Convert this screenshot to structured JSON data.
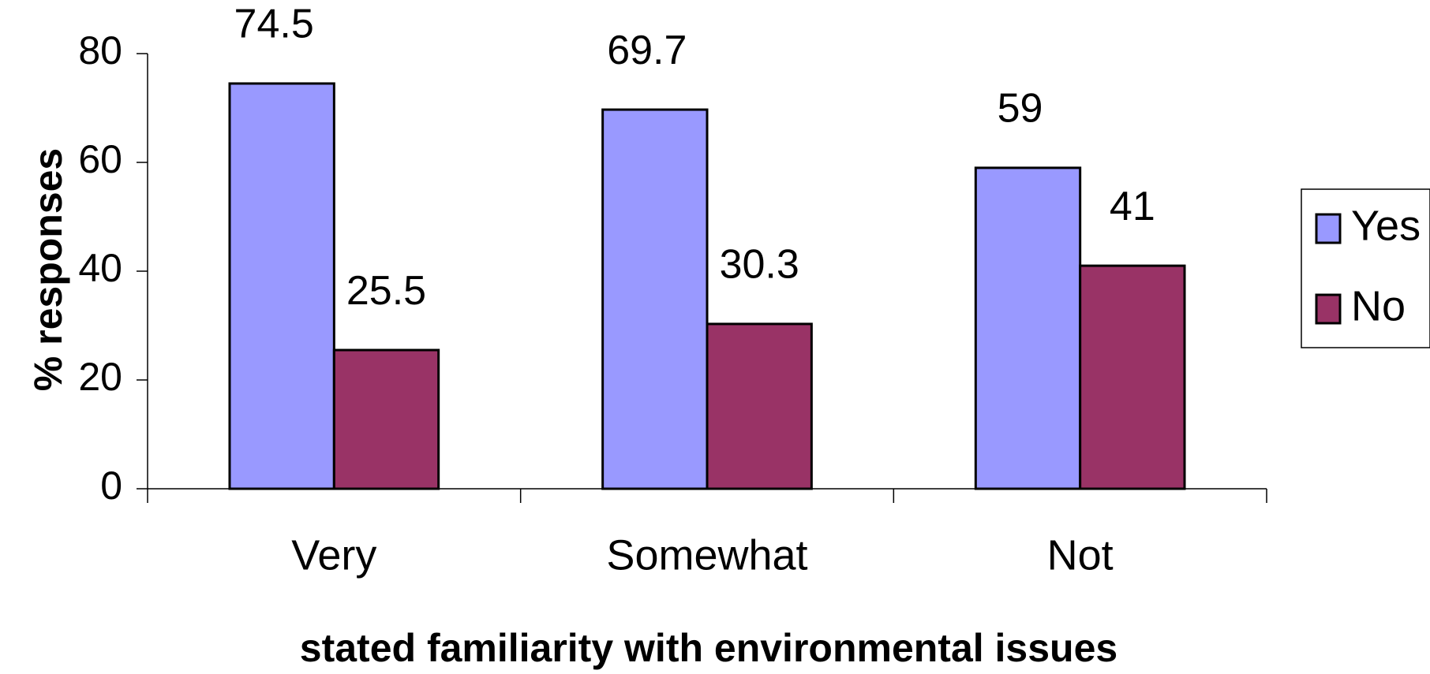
{
  "chart_data": {
    "type": "bar",
    "title": "",
    "xlabel": "stated familiarity with environmental issues",
    "ylabel": "% responses",
    "categories": [
      "Very",
      "Somewhat",
      "Not"
    ],
    "series": [
      {
        "name": "Yes",
        "values": [
          74.5,
          69.7,
          59
        ],
        "labels": [
          "74.5",
          "69.7",
          "59"
        ],
        "color": "#9999ff"
      },
      {
        "name": "No",
        "values": [
          25.5,
          30.3,
          41
        ],
        "labels": [
          "25.5",
          "30.3",
          "41"
        ],
        "color": "#993366"
      }
    ],
    "ylim": [
      0,
      80
    ],
    "yticks": [
      0,
      20,
      40,
      60,
      80
    ],
    "grid": false,
    "legend": "right"
  }
}
